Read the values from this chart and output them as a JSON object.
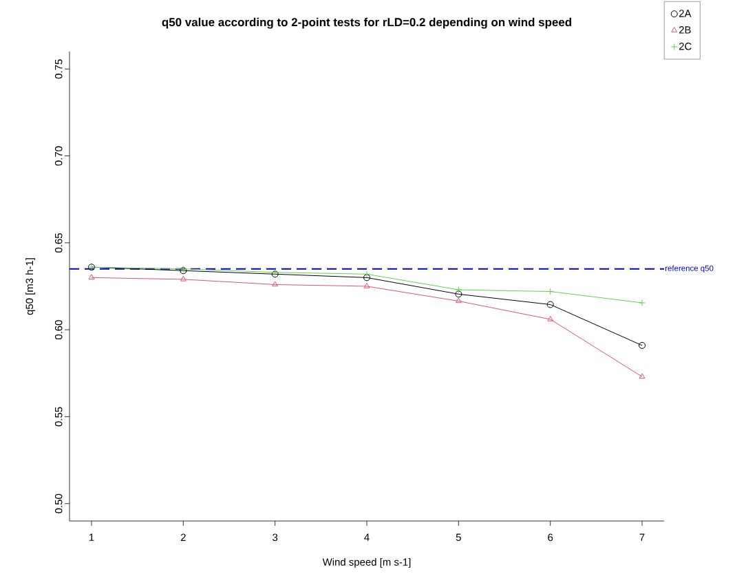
{
  "chart_data": {
    "type": "line",
    "title": "q50 value according to 2-point tests for rLD=0.2 depending on wind speed",
    "xlabel": "Wind speed [m s-1]",
    "ylabel": "q50 [m3 h-1]",
    "x": [
      1,
      2,
      3,
      4,
      5,
      6,
      7
    ],
    "series": [
      {
        "name": "2A",
        "color": "#000000",
        "marker": "circle",
        "values": [
          0.636,
          0.634,
          0.632,
          0.63,
          0.6205,
          0.6145,
          0.591
        ]
      },
      {
        "name": "2B",
        "color": "#df536b",
        "marker": "triangle",
        "values": [
          0.63,
          0.629,
          0.626,
          0.625,
          0.6165,
          0.606,
          0.573
        ]
      },
      {
        "name": "2C",
        "color": "#61d04f",
        "marker": "cross",
        "values": [
          0.636,
          0.635,
          0.633,
          0.632,
          0.623,
          0.622,
          0.6155
        ]
      }
    ],
    "xlim": [
      0.76,
      7.24
    ],
    "ylim": [
      0.49,
      0.76
    ],
    "xticks": [
      1,
      2,
      3,
      4,
      5,
      6,
      7
    ],
    "yticks": [
      {
        "value": 0.5,
        "label": "0.50"
      },
      {
        "value": 0.55,
        "label": "0.55"
      },
      {
        "value": 0.6,
        "label": "0.60"
      },
      {
        "value": 0.65,
        "label": "0.65"
      },
      {
        "value": 0.7,
        "label": "0.70"
      },
      {
        "value": 0.75,
        "label": "0.75"
      }
    ],
    "ref_lines": [
      {
        "axis": "y",
        "value": 0.635,
        "label": "reference q50",
        "color": "#0000cd",
        "line_style": "dashed"
      }
    ],
    "legend": "top right",
    "line_style": "solid"
  }
}
